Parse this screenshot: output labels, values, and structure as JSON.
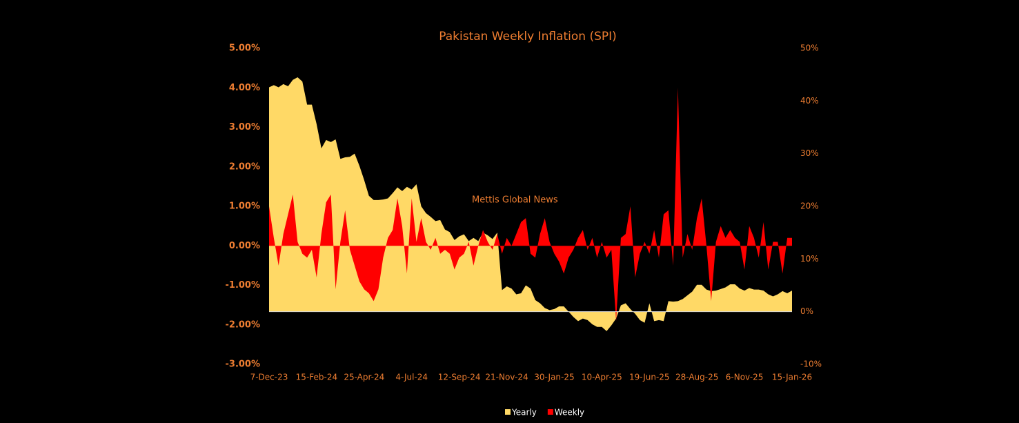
{
  "chart_data": {
    "type": "area",
    "title": "Pakistan Weekly Inflation (SPI)",
    "annotation": "Mettis Global News",
    "categories": [
      "7-Dec-23",
      null,
      null,
      null,
      null,
      null,
      null,
      null,
      null,
      null,
      "15-Feb-24",
      null,
      null,
      null,
      null,
      null,
      null,
      null,
      null,
      null,
      "25-Apr-24",
      null,
      null,
      null,
      null,
      null,
      null,
      null,
      null,
      null,
      "4-Jul-24",
      null,
      null,
      null,
      null,
      null,
      null,
      null,
      null,
      null,
      "12-Sep-24",
      null,
      null,
      null,
      null,
      null,
      null,
      null,
      null,
      null,
      "21-Nov-24",
      null,
      null,
      null,
      null,
      null,
      null,
      null,
      null,
      null,
      "30-Jan-25",
      null,
      null,
      null,
      null,
      null,
      null,
      null,
      null,
      null,
      "10-Apr-25",
      null,
      null,
      null,
      null,
      null,
      null,
      null,
      null,
      null,
      "19-Jun-25",
      null,
      null,
      null,
      null,
      null,
      null,
      null,
      null,
      null,
      "28-Aug-25",
      null,
      null,
      null,
      null,
      null,
      null,
      null,
      null,
      null,
      "6-Nov-25",
      null,
      null,
      null,
      null,
      null,
      null,
      null,
      null,
      null,
      "15-Jan-26"
    ],
    "series": [
      {
        "name": "Yearly",
        "color": "#FFD966",
        "axis": "y2",
        "values": [
          42.6,
          43,
          42.6,
          43.2,
          42.8,
          44,
          44.5,
          43.7,
          39.3,
          39.3,
          35.6,
          31,
          32.6,
          32.2,
          32.7,
          29,
          29.3,
          29.4,
          30,
          27.7,
          25,
          22,
          21.2,
          21.2,
          21.3,
          21.5,
          22.5,
          23.6,
          22.9,
          23.7,
          23.2,
          24.2,
          20,
          18.7,
          18,
          17.2,
          17.4,
          15.6,
          15.1,
          13.6,
          14.3,
          14.7,
          13.4,
          14,
          13.4,
          15,
          14.5,
          13.8,
          15,
          4.1,
          4.8,
          4.4,
          3.3,
          3.5,
          5,
          4.4,
          2.2,
          1.6,
          0.7,
          0.3,
          0.5,
          1,
          1,
          0,
          -1,
          -1.8,
          -1.3,
          -1.6,
          -2.4,
          -2.9,
          -2.9,
          -3.7,
          -2.6,
          -1.3,
          1.2,
          1.6,
          0.5,
          -0.4,
          -1.6,
          -2.1,
          1.6,
          -1.8,
          -1.6,
          -1.8,
          2,
          1.9,
          2,
          2.4,
          3.1,
          3.8,
          5.1,
          5.1,
          4.2,
          3.9,
          4,
          4.3,
          4.6,
          5.2,
          5.2,
          4.4,
          4,
          4.5,
          4.2,
          4.2,
          4,
          3.3,
          2.9,
          3.3,
          3.9,
          3.5,
          4.0
        ]
      },
      {
        "name": "Weekly",
        "color": "#FF0000",
        "values": [
          1.0,
          0.2,
          -0.5,
          0.3,
          0.8,
          1.3,
          0.1,
          -0.2,
          -0.3,
          -0.1,
          -0.8,
          0.3,
          1.1,
          1.3,
          -1.1,
          0.1,
          0.9,
          -0.1,
          -0.5,
          -0.9,
          -1.1,
          -1.2,
          -1.4,
          -1.1,
          -0.3,
          0.2,
          0.4,
          1.2,
          0.5,
          -0.7,
          1.2,
          0.1,
          0.7,
          0.1,
          -0.1,
          0.2,
          -0.2,
          -0.1,
          -0.2,
          -0.6,
          -0.3,
          -0.2,
          0.1,
          -0.5,
          0.0,
          0.4,
          0.1,
          -0.1,
          0.3,
          -0.2,
          0.2,
          0.0,
          0.3,
          0.6,
          0.7,
          -0.2,
          -0.3,
          0.3,
          0.7,
          0.1,
          -0.2,
          -0.4,
          -0.7,
          -0.3,
          -0.1,
          0.2,
          0.4,
          -0.1,
          0.2,
          -0.3,
          0.1,
          -0.3,
          -0.1,
          -1.9,
          0.2,
          0.3,
          1.0,
          -0.8,
          -0.2,
          0.1,
          -0.2,
          0.4,
          -0.3,
          0.8,
          0.9,
          -0.5,
          4.0,
          -0.3,
          0.3,
          -0.1,
          0.7,
          1.2,
          0.0,
          -1.4,
          0.1,
          0.5,
          0.2,
          0.4,
          0.2,
          0.1,
          -0.6,
          0.5,
          0.2,
          -0.3,
          0.6,
          -0.6,
          0.1,
          0.1,
          -0.7,
          0.2,
          0.2
        ]
      }
    ],
    "ylim": [
      -3,
      5
    ],
    "yticks": [
      {
        "value": -3,
        "label": "-3.00%"
      },
      {
        "value": -2,
        "label": "-2.00%"
      },
      {
        "value": -1,
        "label": "-1.00%"
      },
      {
        "value": 0,
        "label": "0.00%"
      },
      {
        "value": 1,
        "label": "1.00%"
      },
      {
        "value": 2,
        "label": "2.00%"
      },
      {
        "value": 3,
        "label": "3.00%"
      },
      {
        "value": 4,
        "label": "4.00%"
      },
      {
        "value": 5,
        "label": "5.00%"
      }
    ],
    "y2lim": [
      -10,
      50
    ],
    "y2ticks": [
      {
        "value": -10,
        "label": "-10%"
      },
      {
        "value": 0,
        "label": "0%"
      },
      {
        "value": 10,
        "label": "10%"
      },
      {
        "value": 20,
        "label": "20%"
      },
      {
        "value": 30,
        "label": "30%"
      },
      {
        "value": 40,
        "label": "40%"
      },
      {
        "value": 50,
        "label": "50%"
      }
    ],
    "legend": "bottom"
  }
}
